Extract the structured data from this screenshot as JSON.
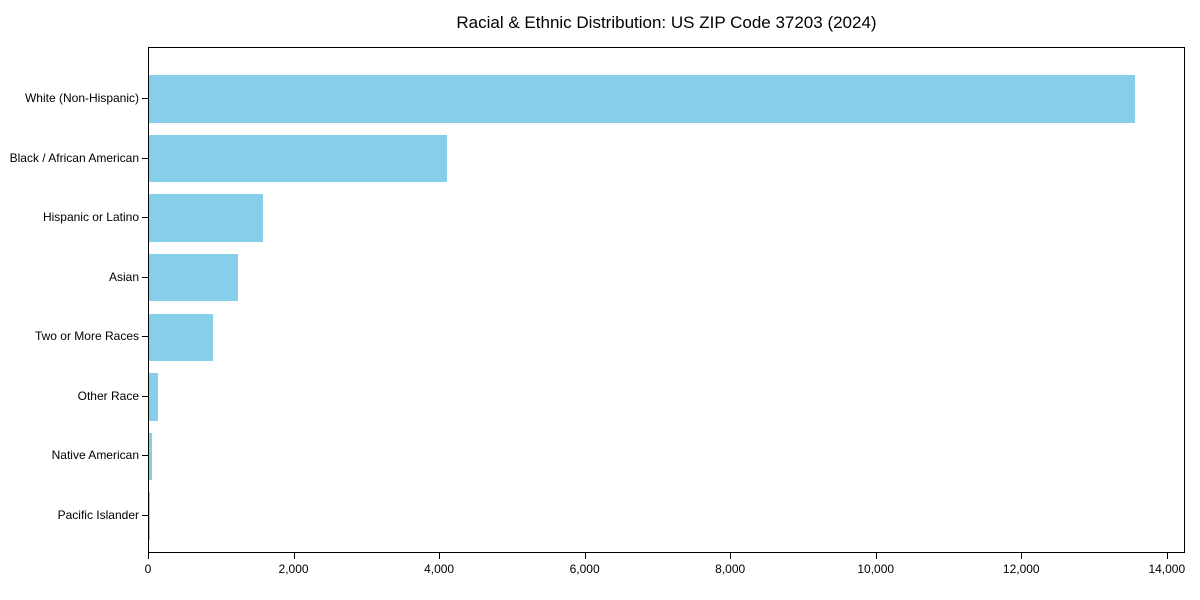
{
  "figure": {
    "background": "#ffffff"
  },
  "chart_data": {
    "type": "bar",
    "orientation": "horizontal",
    "title": "Racial & Ethnic Distribution: US ZIP Code 37203 (2024)",
    "categories": [
      "White (Non-Hispanic)",
      "Black / African American",
      "Hispanic or Latino",
      "Asian",
      "Two or More Races",
      "Other Race",
      "Native American",
      "Pacific Islander"
    ],
    "values": [
      13545,
      4100,
      1570,
      1220,
      875,
      130,
      45,
      10
    ],
    "xlabel": "",
    "ylabel": "",
    "xlim": [
      0,
      14250
    ],
    "xticks": [
      0,
      2000,
      4000,
      6000,
      8000,
      10000,
      12000,
      14000
    ],
    "xtick_labels": [
      "0",
      "2,000",
      "4,000",
      "6,000",
      "8,000",
      "10,000",
      "12,000",
      "14,000"
    ],
    "bar_color": "#87CEEB",
    "axis_color": "#000000",
    "text_color": "#000000",
    "grid": false,
    "legend": null
  }
}
